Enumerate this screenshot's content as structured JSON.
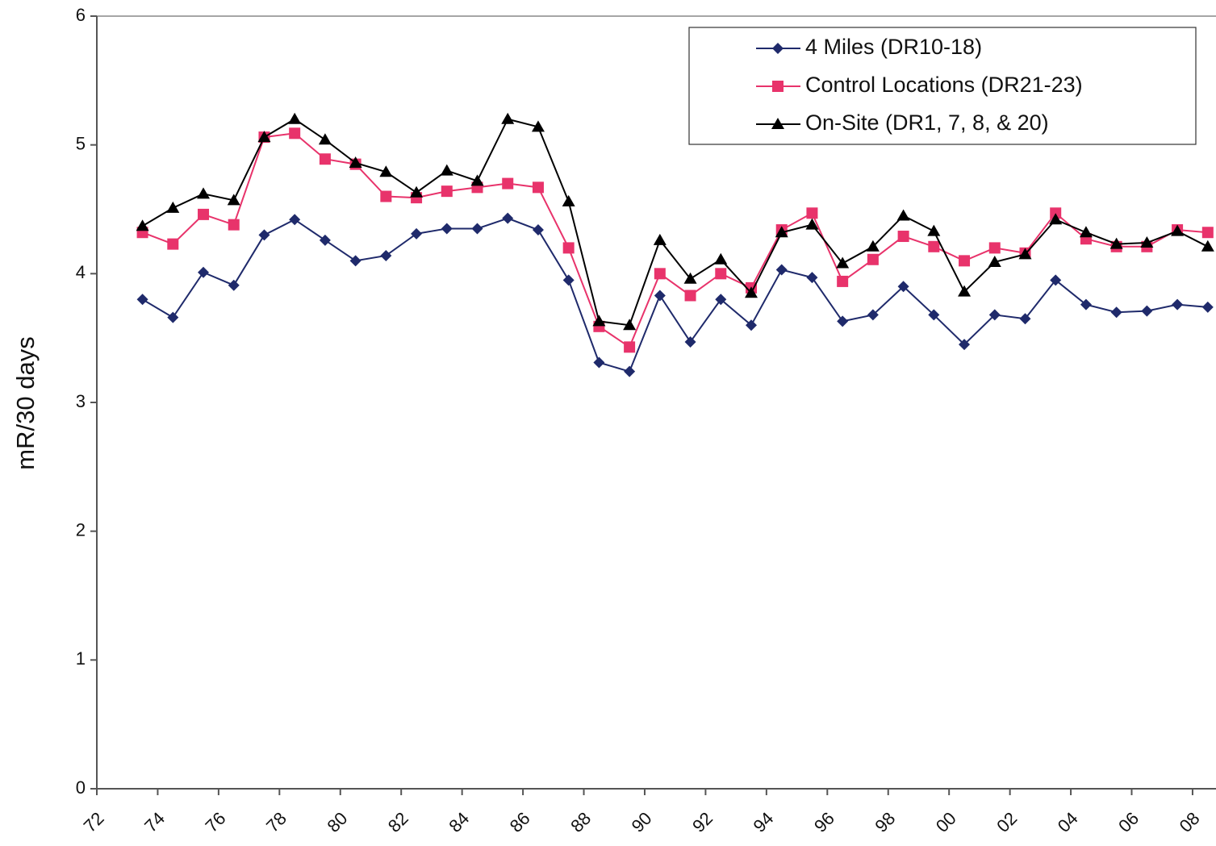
{
  "chart_data": {
    "type": "line",
    "ylabel": "mR/30 days",
    "x": [
      1973.5,
      1974.5,
      1975.5,
      1976.5,
      1977.5,
      1978.5,
      1979.5,
      1980.5,
      1981.5,
      1982.5,
      1983.5,
      1984.5,
      1985.5,
      1986.5,
      1987.5,
      1988.5,
      1989.5,
      1990.5,
      1991.5,
      1992.5,
      1993.5,
      1994.5,
      1995.5,
      1996.5,
      1997.5,
      1998.5,
      1999.5,
      2000.5,
      2001.5,
      2002.5,
      2003.5,
      2004.5,
      2005.5,
      2006.5,
      2007.5,
      2008.5
    ],
    "series": [
      {
        "name": "4 Miles (DR10-18)",
        "color": "#1f2a6b",
        "marker": "diamond",
        "values": [
          3.8,
          3.66,
          4.01,
          3.91,
          4.3,
          4.42,
          4.26,
          4.1,
          4.14,
          4.31,
          4.35,
          4.35,
          4.43,
          4.34,
          3.95,
          3.31,
          3.24,
          3.83,
          3.47,
          3.8,
          3.6,
          4.03,
          3.97,
          3.63,
          3.68,
          3.9,
          3.68,
          3.45,
          3.68,
          3.65,
          3.95,
          3.76,
          3.7,
          3.71,
          3.76,
          3.74
        ]
      },
      {
        "name": "Control Locations (DR21-23)",
        "color": "#e8336b",
        "marker": "square",
        "values": [
          4.32,
          4.23,
          4.46,
          4.38,
          5.06,
          5.09,
          4.89,
          4.85,
          4.6,
          4.59,
          4.64,
          4.67,
          4.7,
          4.67,
          4.2,
          3.59,
          3.43,
          4.0,
          3.83,
          4.0,
          3.89,
          4.34,
          4.47,
          3.94,
          4.11,
          4.29,
          4.21,
          4.1,
          4.2,
          4.16,
          4.47,
          4.27,
          4.21,
          4.21,
          4.34,
          4.32
        ]
      },
      {
        "name": "On-Site (DR1, 7, 8, & 20)",
        "color": "#000000",
        "marker": "triangle",
        "values": [
          4.37,
          4.51,
          4.62,
          4.57,
          5.06,
          5.2,
          5.04,
          4.86,
          4.79,
          4.63,
          4.8,
          4.72,
          5.2,
          5.14,
          4.56,
          3.63,
          3.6,
          4.26,
          3.96,
          4.11,
          3.85,
          4.32,
          4.38,
          4.08,
          4.21,
          4.45,
          4.33,
          3.86,
          4.09,
          4.15,
          4.42,
          4.32,
          4.23,
          4.24,
          4.33,
          4.21
        ]
      }
    ],
    "xlim": [
      1972,
      2008.77
    ],
    "xticks": [
      {
        "value": 1972,
        "label": "72"
      },
      {
        "value": 1974,
        "label": "74"
      },
      {
        "value": 1976,
        "label": "76"
      },
      {
        "value": 1978,
        "label": "78"
      },
      {
        "value": 1980,
        "label": "80"
      },
      {
        "value": 1982,
        "label": "82"
      },
      {
        "value": 1984,
        "label": "84"
      },
      {
        "value": 1986,
        "label": "86"
      },
      {
        "value": 1988,
        "label": "88"
      },
      {
        "value": 1990,
        "label": "90"
      },
      {
        "value": 1992,
        "label": "92"
      },
      {
        "value": 1994,
        "label": "94"
      },
      {
        "value": 1996,
        "label": "96"
      },
      {
        "value": 1998,
        "label": "98"
      },
      {
        "value": 2000,
        "label": "00"
      },
      {
        "value": 2002,
        "label": "02"
      },
      {
        "value": 2004,
        "label": "04"
      },
      {
        "value": 2006,
        "label": "06"
      },
      {
        "value": 2008,
        "label": "08"
      }
    ],
    "ylim": [
      0,
      6
    ],
    "yticks": [
      0,
      1,
      2,
      3,
      4,
      5,
      6
    ],
    "grid": false,
    "legend": "upper right"
  }
}
